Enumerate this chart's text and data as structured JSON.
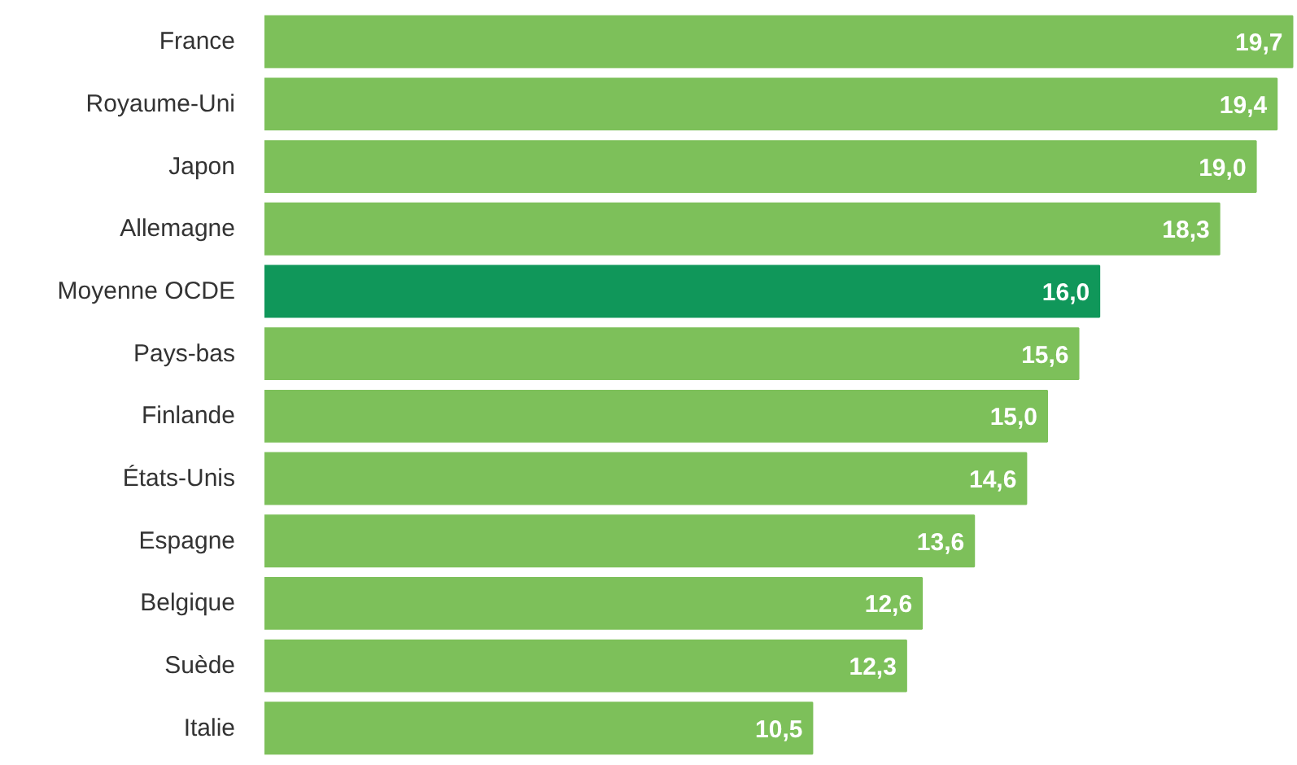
{
  "chart_data": {
    "type": "bar",
    "orientation": "horizontal",
    "categories": [
      "France",
      "Royaume-Uni",
      "Japon",
      "Allemagne",
      "Moyenne OCDE",
      "Pays-bas",
      "Finlande",
      "États-Unis",
      "Espagne",
      "Belgique",
      "Suède",
      "Italie"
    ],
    "values": [
      19.7,
      19.4,
      19.0,
      18.3,
      16.0,
      15.6,
      15.0,
      14.6,
      13.6,
      12.6,
      12.3,
      10.5
    ],
    "value_labels": [
      "19,7",
      "19,4",
      "19,0",
      "18,3",
      "16,0",
      "15,6",
      "15,0",
      "14,6",
      "13,6",
      "12,6",
      "12,3",
      "10,5"
    ],
    "colors": [
      "#7dc05a",
      "#7dc05a",
      "#7dc05a",
      "#7dc05a",
      "#10975a",
      "#7dc05a",
      "#7dc05a",
      "#7dc05a",
      "#7dc05a",
      "#7dc05a",
      "#7dc05a",
      "#7dc05a"
    ]
  }
}
